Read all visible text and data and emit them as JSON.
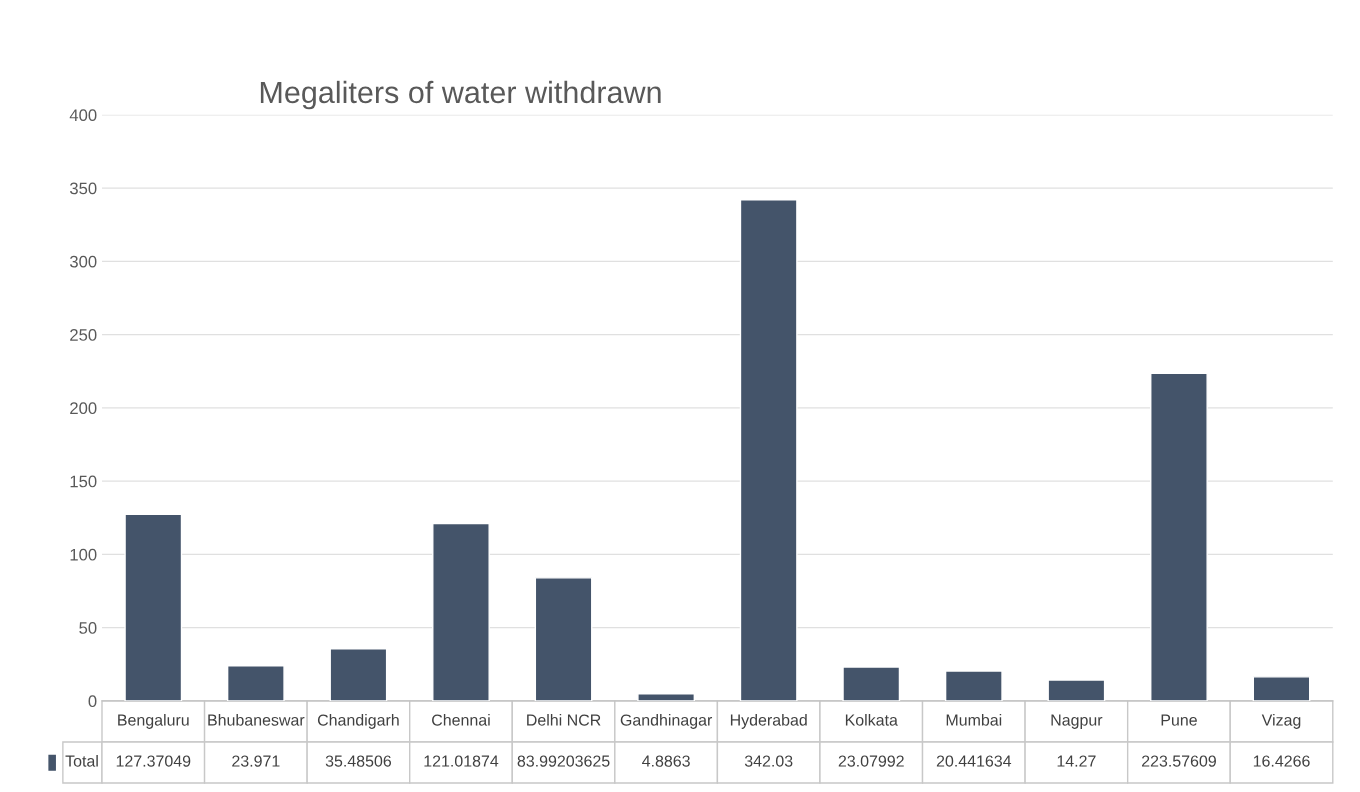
{
  "chart_data": {
    "type": "bar",
    "title": "Megaliters of water withdrawn",
    "categories": [
      "Bengaluru",
      "Bhubaneswar",
      "Chandigarh",
      "Chennai",
      "Delhi NCR",
      "Gandhinagar",
      "Hyderabad",
      "Kolkata",
      "Mumbai",
      "Nagpur",
      "Pune",
      "Vizag"
    ],
    "series": [
      {
        "name": "Total",
        "color": "#44546a",
        "values": [
          127.37049,
          23.971,
          35.48506,
          121.01874,
          83.99203625,
          4.8863,
          342.03,
          23.07992,
          20.441634,
          14.27,
          223.57609,
          16.4266
        ]
      }
    ],
    "ylim": [
      0,
      400
    ],
    "yticks": [
      0,
      50,
      100,
      150,
      200,
      250,
      300,
      350,
      400
    ],
    "grid": "y",
    "data_labels": true
  }
}
